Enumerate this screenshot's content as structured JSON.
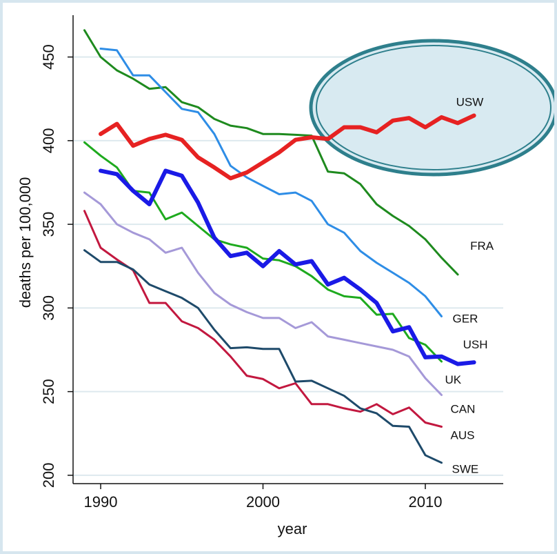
{
  "chart_data": {
    "type": "line",
    "title": "",
    "xlabel": "year",
    "ylabel": "deaths per 100,000",
    "xlim": [
      1988.3,
      2014.8
    ],
    "ylim": [
      195,
      475
    ],
    "x_ticks": [
      1990,
      2000,
      2010
    ],
    "y_ticks": [
      200,
      250,
      300,
      350,
      400,
      450
    ],
    "grid": true,
    "highlight": {
      "shape": "ellipse",
      "target_series": "USW"
    },
    "series": [
      {
        "name": "FRA",
        "color": "#1e8a1e",
        "width": 3,
        "points": [
          [
            1989,
            466
          ],
          [
            1990,
            450
          ],
          [
            1991,
            442
          ],
          [
            1992,
            437
          ],
          [
            1993,
            431
          ],
          [
            1994,
            432
          ],
          [
            1995,
            423
          ],
          [
            1996,
            420
          ],
          [
            1997,
            413
          ],
          [
            1998,
            409
          ],
          [
            1999,
            407.5
          ],
          [
            2000,
            404
          ],
          [
            2001,
            404
          ],
          [
            2002,
            403.5
          ],
          [
            2003,
            403
          ],
          [
            2004,
            381.5
          ],
          [
            2005,
            380.5
          ],
          [
            2006,
            374
          ],
          [
            2007,
            362
          ],
          [
            2008,
            355
          ],
          [
            2009,
            349
          ],
          [
            2010,
            341
          ],
          [
            2011,
            330
          ],
          [
            2012,
            320
          ]
        ]
      },
      {
        "name": "GER",
        "color": "#2e8de6",
        "width": 3,
        "points": [
          [
            1990,
            455
          ],
          [
            1991,
            454
          ],
          [
            1992,
            439
          ],
          [
            1993,
            439
          ],
          [
            1994,
            429
          ],
          [
            1995,
            419
          ],
          [
            1996,
            417
          ],
          [
            1997,
            404
          ],
          [
            1998,
            385
          ],
          [
            1999,
            378
          ],
          [
            2000,
            373
          ],
          [
            2001,
            368
          ],
          [
            2002,
            369
          ],
          [
            2003,
            364
          ],
          [
            2004,
            350
          ],
          [
            2005,
            345
          ],
          [
            2006,
            334
          ],
          [
            2007,
            327
          ],
          [
            2008,
            321
          ],
          [
            2009,
            315
          ],
          [
            2010,
            307
          ],
          [
            2011,
            295
          ]
        ]
      },
      {
        "name": "USW",
        "color": "#e62222",
        "width": 6,
        "points": [
          [
            1990,
            404
          ],
          [
            1991,
            410
          ],
          [
            1992,
            397
          ],
          [
            1993,
            401
          ],
          [
            1994,
            403.5
          ],
          [
            1995,
            400.5
          ],
          [
            1996,
            390
          ],
          [
            1997,
            384
          ],
          [
            1998,
            377.5
          ],
          [
            1999,
            381
          ],
          [
            2000,
            387
          ],
          [
            2001,
            393
          ],
          [
            2002,
            400.5
          ],
          [
            2003,
            402
          ],
          [
            2004,
            401
          ],
          [
            2005,
            408
          ],
          [
            2006,
            408
          ],
          [
            2007,
            405
          ],
          [
            2008,
            412
          ],
          [
            2009,
            413.5
          ],
          [
            2010,
            408
          ],
          [
            2011,
            414
          ],
          [
            2012,
            410.5
          ],
          [
            2013,
            415
          ]
        ]
      },
      {
        "name": "UK",
        "color": "#1eaa1e",
        "width": 3,
        "points": [
          [
            1989,
            399
          ],
          [
            1990,
            391
          ],
          [
            1991,
            384
          ],
          [
            1992,
            370
          ],
          [
            1993,
            369
          ],
          [
            1994,
            353
          ],
          [
            1995,
            357
          ],
          [
            1996,
            349
          ],
          [
            1997,
            341
          ],
          [
            1998,
            338
          ],
          [
            1999,
            336
          ],
          [
            2000,
            329.5
          ],
          [
            2001,
            328.5
          ],
          [
            2002,
            325
          ],
          [
            2003,
            319
          ],
          [
            2004,
            311
          ],
          [
            2005,
            307
          ],
          [
            2006,
            306
          ],
          [
            2007,
            296
          ],
          [
            2008,
            296.5
          ],
          [
            2009,
            282
          ],
          [
            2010,
            278
          ],
          [
            2011,
            268
          ]
        ]
      },
      {
        "name": "USH",
        "color": "#1a1ae6",
        "width": 6,
        "points": [
          [
            1990,
            382
          ],
          [
            1991,
            380
          ],
          [
            1992,
            370
          ],
          [
            1993,
            362
          ],
          [
            1994,
            382
          ],
          [
            1995,
            379
          ],
          [
            1996,
            363
          ],
          [
            1997,
            342
          ],
          [
            1998,
            331
          ],
          [
            1999,
            333
          ],
          [
            2000,
            325
          ],
          [
            2001,
            334
          ],
          [
            2002,
            326
          ],
          [
            2003,
            328
          ],
          [
            2004,
            314
          ],
          [
            2005,
            318
          ],
          [
            2006,
            311
          ],
          [
            2007,
            303
          ],
          [
            2008,
            286
          ],
          [
            2009,
            288.5
          ],
          [
            2010,
            270.5
          ],
          [
            2011,
            271
          ],
          [
            2012,
            266.5
          ],
          [
            2013,
            267.5
          ]
        ]
      },
      {
        "name": "CAN",
        "color": "#a599d8",
        "width": 3,
        "points": [
          [
            1989,
            369
          ],
          [
            1990,
            362
          ],
          [
            1991,
            350
          ],
          [
            1992,
            345
          ],
          [
            1993,
            341
          ],
          [
            1994,
            333
          ],
          [
            1995,
            336
          ],
          [
            1996,
            321
          ],
          [
            1997,
            309
          ],
          [
            1998,
            302
          ],
          [
            1999,
            297.5
          ],
          [
            2000,
            294
          ],
          [
            2001,
            294
          ],
          [
            2002,
            288
          ],
          [
            2003,
            291.5
          ],
          [
            2004,
            283
          ],
          [
            2005,
            281
          ],
          [
            2006,
            279
          ],
          [
            2007,
            277
          ],
          [
            2008,
            275
          ],
          [
            2009,
            271
          ],
          [
            2010,
            258
          ],
          [
            2011,
            248
          ]
        ]
      },
      {
        "name": "AUS",
        "color": "#c2183f",
        "width": 3,
        "points": [
          [
            1989,
            358
          ],
          [
            1990,
            336
          ],
          [
            1991,
            329
          ],
          [
            1992,
            322.5
          ],
          [
            1993,
            303
          ],
          [
            1994,
            303
          ],
          [
            1995,
            292
          ],
          [
            1996,
            288
          ],
          [
            1997,
            281
          ],
          [
            1998,
            271
          ],
          [
            1999,
            259.5
          ],
          [
            2000,
            257.5
          ],
          [
            2001,
            252
          ],
          [
            2002,
            255
          ],
          [
            2003,
            242.5
          ],
          [
            2004,
            242.5
          ],
          [
            2005,
            240
          ],
          [
            2006,
            238
          ],
          [
            2007,
            242.5
          ],
          [
            2008,
            236.5
          ],
          [
            2009,
            240.5
          ],
          [
            2010,
            231.5
          ],
          [
            2011,
            229
          ]
        ]
      },
      {
        "name": "SWE",
        "color": "#1e4a6a",
        "width": 3,
        "points": [
          [
            1989,
            334.5
          ],
          [
            1990,
            327.5
          ],
          [
            1991,
            327.5
          ],
          [
            1992,
            323
          ],
          [
            1993,
            314
          ],
          [
            1994,
            310
          ],
          [
            1995,
            306
          ],
          [
            1996,
            300
          ],
          [
            1997,
            287
          ],
          [
            1998,
            276
          ],
          [
            1999,
            276.5
          ],
          [
            2000,
            275.5
          ],
          [
            2001,
            275.5
          ],
          [
            2002,
            256
          ],
          [
            2003,
            256.5
          ],
          [
            2004,
            252
          ],
          [
            2005,
            247.5
          ],
          [
            2006,
            240
          ],
          [
            2007,
            237
          ],
          [
            2008,
            229.5
          ],
          [
            2009,
            229
          ],
          [
            2010,
            212
          ],
          [
            2011,
            207.5
          ]
        ]
      }
    ]
  }
}
